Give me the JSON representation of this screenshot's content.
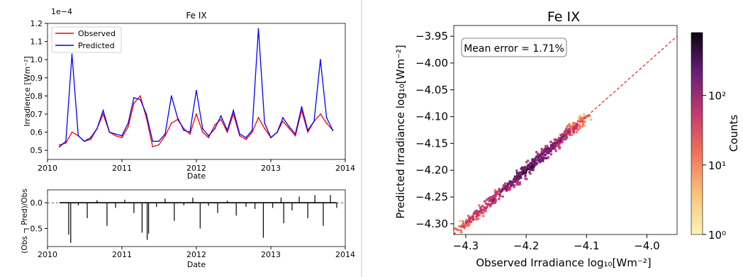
{
  "chart_data": [
    {
      "type": "line",
      "title": "Fe IX",
      "xlabel": "Date",
      "ylabel": "Irradience [Wm⁻²]",
      "y_multiplier_label": "1e−4",
      "x_ticks": [
        "2010",
        "2011",
        "2012",
        "2013",
        "2014"
      ],
      "xlim": [
        "2010-01-01",
        "2014-01-01"
      ],
      "y_ticks": [
        "0.5",
        "0.6",
        "0.7",
        "0.8",
        "0.9",
        "1.0",
        "1.1",
        "1.2"
      ],
      "ylim": [
        0.45,
        1.2
      ],
      "legend": "top-left",
      "series": [
        {
          "name": "Observed",
          "color": "#ff0000",
          "x": [
            "2010-03-01",
            "2010-04-01",
            "2010-05-01",
            "2010-06-01",
            "2010-07-01",
            "2010-08-01",
            "2010-09-01",
            "2010-10-01",
            "2010-11-01",
            "2010-12-01",
            "2011-01-01",
            "2011-02-01",
            "2011-03-01",
            "2011-04-01",
            "2011-05-01",
            "2011-06-01",
            "2011-07-01",
            "2011-08-01",
            "2011-09-01",
            "2011-10-01",
            "2011-11-01",
            "2011-12-01",
            "2012-01-01",
            "2012-02-01",
            "2012-03-01",
            "2012-04-01",
            "2012-05-01",
            "2012-06-01",
            "2012-07-01",
            "2012-08-01",
            "2012-09-01",
            "2012-10-01",
            "2012-11-01",
            "2012-12-01",
            "2013-01-01",
            "2013-02-01",
            "2013-03-01",
            "2013-04-01",
            "2013-05-01",
            "2013-06-01",
            "2013-07-01",
            "2013-08-01",
            "2013-09-01",
            "2013-10-01",
            "2013-11-01"
          ],
          "values": [
            0.53,
            0.54,
            0.6,
            0.58,
            0.55,
            0.56,
            0.62,
            0.7,
            0.6,
            0.58,
            0.57,
            0.63,
            0.76,
            0.8,
            0.68,
            0.52,
            0.53,
            0.58,
            0.65,
            0.67,
            0.62,
            0.59,
            0.7,
            0.6,
            0.57,
            0.64,
            0.67,
            0.6,
            0.7,
            0.58,
            0.56,
            0.6,
            0.68,
            0.62,
            0.57,
            0.6,
            0.66,
            0.62,
            0.58,
            0.72,
            0.6,
            0.66,
            0.7,
            0.65,
            0.61
          ]
        },
        {
          "name": "Predicted",
          "color": "#0000ff",
          "x": [
            "2010-03-01",
            "2010-04-01",
            "2010-05-01",
            "2010-06-01",
            "2010-07-01",
            "2010-08-01",
            "2010-09-01",
            "2010-10-01",
            "2010-11-01",
            "2010-12-01",
            "2011-01-01",
            "2011-02-01",
            "2011-03-01",
            "2011-04-01",
            "2011-05-01",
            "2011-06-01",
            "2011-07-01",
            "2011-08-01",
            "2011-09-01",
            "2011-10-01",
            "2011-11-01",
            "2011-12-01",
            "2012-01-01",
            "2012-02-01",
            "2012-03-01",
            "2012-04-01",
            "2012-05-01",
            "2012-06-01",
            "2012-07-01",
            "2012-08-01",
            "2012-09-01",
            "2012-10-01",
            "2012-11-01",
            "2012-12-01",
            "2013-01-01",
            "2013-02-01",
            "2013-03-01",
            "2013-04-01",
            "2013-05-01",
            "2013-06-01",
            "2013-07-01",
            "2013-08-01",
            "2013-09-01",
            "2013-10-01",
            "2013-11-01"
          ],
          "values": [
            0.52,
            0.55,
            1.03,
            0.58,
            0.55,
            0.57,
            0.62,
            0.72,
            0.6,
            0.59,
            0.58,
            0.65,
            0.79,
            0.78,
            0.7,
            0.55,
            0.55,
            0.59,
            0.8,
            0.68,
            0.61,
            0.6,
            0.83,
            0.62,
            0.58,
            0.62,
            0.69,
            0.61,
            0.72,
            0.59,
            0.57,
            0.61,
            1.17,
            0.65,
            0.57,
            0.6,
            0.68,
            0.63,
            0.59,
            0.74,
            0.61,
            0.66,
            1.0,
            0.68,
            0.61
          ]
        }
      ]
    },
    {
      "type": "line",
      "title": "",
      "xlabel": "Date",
      "ylabel": "(Obs − Pred)/Obs",
      "x_ticks": [
        "2010",
        "2011",
        "2012",
        "2013",
        "2014"
      ],
      "xlim": [
        "2010-01-01",
        "2014-01-01"
      ],
      "y_ticks": [
        "0.0",
        "−0.5"
      ],
      "ylim": [
        -0.85,
        0.25
      ],
      "reference_line": 0.0,
      "series": [
        {
          "color": "#000000",
          "x": [
            "2010-03-01",
            "2010-04-15",
            "2010-04-25",
            "2010-06-01",
            "2010-07-15",
            "2010-09-01",
            "2010-10-20",
            "2010-12-01",
            "2011-01-15",
            "2011-03-01",
            "2011-04-10",
            "2011-05-05",
            "2011-05-12",
            "2011-06-20",
            "2011-08-01",
            "2011-09-15",
            "2011-11-01",
            "2011-12-15",
            "2012-01-20",
            "2012-03-01",
            "2012-04-15",
            "2012-06-01",
            "2012-07-15",
            "2012-09-01",
            "2012-10-15",
            "2012-11-25",
            "2013-01-10",
            "2013-02-20",
            "2013-03-05",
            "2013-04-15",
            "2013-05-20",
            "2013-07-01",
            "2013-08-05",
            "2013-09-15",
            "2013-10-20",
            "2013-11-20"
          ],
          "values": [
            0.0,
            -0.62,
            -0.78,
            -0.05,
            -0.3,
            0.05,
            -0.45,
            -0.1,
            0.06,
            -0.2,
            -0.58,
            -0.72,
            -0.6,
            -0.08,
            0.08,
            -0.35,
            -0.05,
            0.1,
            -0.5,
            -0.06,
            -0.2,
            0.04,
            -0.25,
            -0.08,
            -0.12,
            -0.68,
            -0.1,
            0.1,
            -0.4,
            -0.15,
            0.12,
            -0.3,
            0.15,
            -0.45,
            0.15,
            -0.1
          ]
        }
      ]
    },
    {
      "type": "heatmap",
      "title": "Fe IX",
      "xlabel": "Observed Irradiance log₁₀[Wm⁻²]",
      "ylabel": "Predicted Irradiance log₁₀[Wm⁻²]",
      "x_ticks": [
        "−4.3",
        "−4.2",
        "−4.1",
        "−4.0"
      ],
      "xlim": [
        -4.32,
        -3.95
      ],
      "y_ticks": [
        "−4.30",
        "−4.25",
        "−4.20",
        "−4.15",
        "−4.10",
        "−4.05",
        "−4.00",
        "−3.95"
      ],
      "ylim": [
        -4.32,
        -3.93
      ],
      "annotation": "Mean error = 1.71%",
      "diagonal_line": true,
      "colorbar": {
        "label": "Counts",
        "scale": "log",
        "ticks": [
          "10⁰",
          "10¹",
          "10²"
        ],
        "range": [
          1,
          800
        ]
      },
      "density_centerline": [
        {
          "x": -4.31,
          "y": -4.31,
          "count": 30
        },
        {
          "x": -4.28,
          "y": -4.28,
          "count": 80
        },
        {
          "x": -4.25,
          "y": -4.25,
          "count": 150
        },
        {
          "x": -4.22,
          "y": -4.22,
          "count": 300
        },
        {
          "x": -4.2,
          "y": -4.2,
          "count": 700
        },
        {
          "x": -4.18,
          "y": -4.18,
          "count": 500
        },
        {
          "x": -4.16,
          "y": -4.16,
          "count": 300
        },
        {
          "x": -4.14,
          "y": -4.14,
          "count": 150
        },
        {
          "x": -4.12,
          "y": -4.12,
          "count": 60
        },
        {
          "x": -4.1,
          "y": -4.1,
          "count": 10
        }
      ]
    }
  ]
}
